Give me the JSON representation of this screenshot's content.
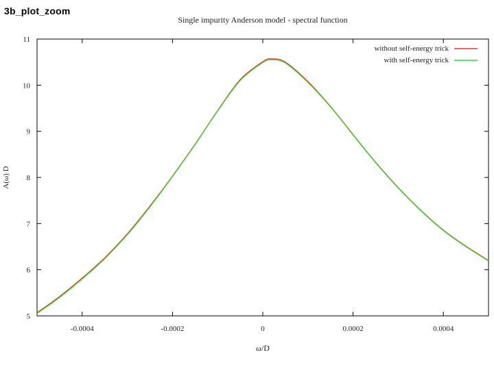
{
  "slide": {
    "title": "3b_plot_zoom"
  },
  "chart_data": {
    "type": "line",
    "title": "Single impurity Anderson model - spectral function",
    "xlabel": "ω/D",
    "ylabel": "A(ω) D",
    "xlim": [
      -0.0005,
      0.0005
    ],
    "ylim": [
      5,
      11
    ],
    "x_ticks": [
      -0.0004,
      -0.0002,
      0,
      0.0002,
      0.0004
    ],
    "x_tick_labels": [
      "-0.0004",
      "-0.0002",
      "0",
      "0.0002",
      "0.0004"
    ],
    "y_ticks": [
      5,
      6,
      7,
      8,
      9,
      10,
      11
    ],
    "y_tick_labels": [
      "5",
      "6",
      "7",
      "8",
      "9",
      "10",
      "11"
    ],
    "grid": false,
    "legend_position": "top-right",
    "series": [
      {
        "name": "without self-energy trick",
        "color": "#e8342a",
        "x": [
          -0.0005,
          -0.00045,
          -0.0004,
          -0.00035,
          -0.0003,
          -0.00025,
          -0.0002,
          -0.00015,
          -0.0001,
          -5e-05,
          0,
          2e-05,
          5e-05,
          0.0001,
          0.00015,
          0.0002,
          0.00025,
          0.0003,
          0.00035,
          0.0004,
          0.00045,
          0.0005
        ],
        "y": [
          5.07,
          5.42,
          5.82,
          6.26,
          6.78,
          7.38,
          8.03,
          8.72,
          9.45,
          10.12,
          10.51,
          10.57,
          10.5,
          10.08,
          9.54,
          8.93,
          8.33,
          7.78,
          7.29,
          6.86,
          6.51,
          6.2
        ]
      },
      {
        "name": "with self-energy trick",
        "color": "#33d933",
        "x": [
          -0.0005,
          -0.00045,
          -0.0004,
          -0.00035,
          -0.0003,
          -0.00025,
          -0.0002,
          -0.00015,
          -0.0001,
          -5e-05,
          0,
          2e-05,
          5e-05,
          0.0001,
          0.00015,
          0.0002,
          0.00025,
          0.0003,
          0.00035,
          0.0004,
          0.00045,
          0.0005
        ],
        "y": [
          5.05,
          5.4,
          5.8,
          6.24,
          6.76,
          7.36,
          8.02,
          8.71,
          9.44,
          10.1,
          10.49,
          10.55,
          10.48,
          10.06,
          9.53,
          8.92,
          8.32,
          7.77,
          7.28,
          6.85,
          6.5,
          6.19
        ]
      }
    ]
  }
}
